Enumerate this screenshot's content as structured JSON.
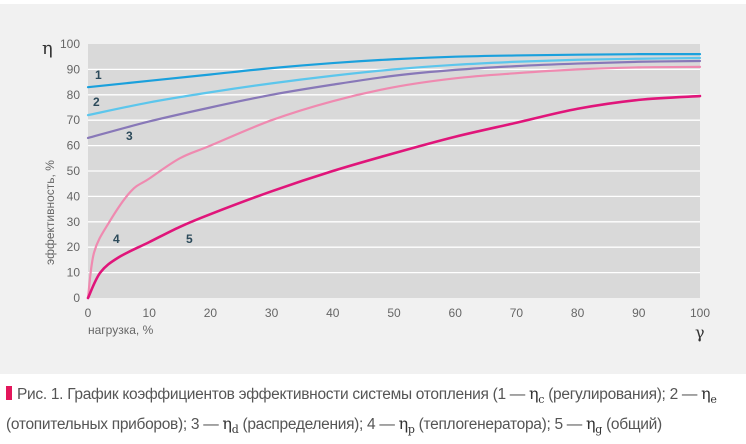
{
  "chart_data": {
    "type": "line",
    "ylabel": "эффективность, %",
    "ysymbol": "η",
    "xlabel": "нагрузка, %",
    "xsymbol": "γ",
    "xlim": [
      0,
      100
    ],
    "ylim": [
      0,
      100
    ],
    "xticks": [
      "0",
      "10",
      "20",
      "30",
      "40",
      "50",
      "60",
      "70",
      "80",
      "90",
      "100"
    ],
    "yticks": [
      "0",
      "10",
      "20",
      "30",
      "40",
      "50",
      "60",
      "70",
      "80",
      "90",
      "100"
    ],
    "grid": true,
    "series": [
      {
        "name": "1",
        "color": "#1aa0dc",
        "x": [
          0,
          10,
          20,
          30,
          40,
          50,
          60,
          70,
          80,
          90,
          100
        ],
        "y": [
          83,
          85.5,
          88,
          90.5,
          92.5,
          94,
          95,
          95.5,
          95.8,
          96,
          96
        ]
      },
      {
        "name": "2",
        "color": "#5cc6ec",
        "x": [
          0,
          10,
          20,
          30,
          40,
          50,
          60,
          70,
          80,
          90,
          100
        ],
        "y": [
          72,
          77,
          81,
          84.5,
          87.5,
          90,
          91.8,
          93,
          93.8,
          94.2,
          94.5
        ]
      },
      {
        "name": "3",
        "color": "#8878b8",
        "x": [
          0,
          10,
          20,
          30,
          40,
          50,
          60,
          70,
          80,
          90,
          100
        ],
        "y": [
          63,
          69.5,
          75,
          80,
          84,
          87.5,
          89.8,
          91.3,
          92.3,
          93,
          93.3
        ]
      },
      {
        "name": "4",
        "color": "#ef8ab0",
        "x": [
          0,
          1,
          3.5,
          7,
          10,
          15,
          20,
          30,
          40,
          50,
          60,
          70,
          80,
          90,
          100
        ],
        "y": [
          0,
          18,
          30,
          42,
          47,
          55,
          60,
          70,
          77.5,
          83,
          86.5,
          88.5,
          90,
          90.8,
          91
        ]
      },
      {
        "name": "5",
        "color": "#e0157a",
        "x": [
          0,
          2,
          5,
          10,
          15,
          20,
          30,
          40,
          50,
          60,
          70,
          80,
          90,
          100
        ],
        "y": [
          0,
          10,
          16,
          22,
          28,
          33,
          42,
          50,
          57,
          63.5,
          69,
          74.5,
          78,
          79.5
        ]
      }
    ]
  },
  "caption": {
    "prefix": "Рис. 1. График коэффициентов эффективности системы отопления (1 —",
    "s1": "c",
    "t1": "(регулирования); 2 —",
    "s2": "e",
    "t2": "(отопительных приборов); 3 —",
    "s3": "d",
    "t3": "(распределения); 4 —",
    "s4": "p",
    "t4": "(теплогенератора); 5 —",
    "s5": "g",
    "t5": "(общий)",
    "eta": "η",
    "accent_color": "#e3165b"
  }
}
